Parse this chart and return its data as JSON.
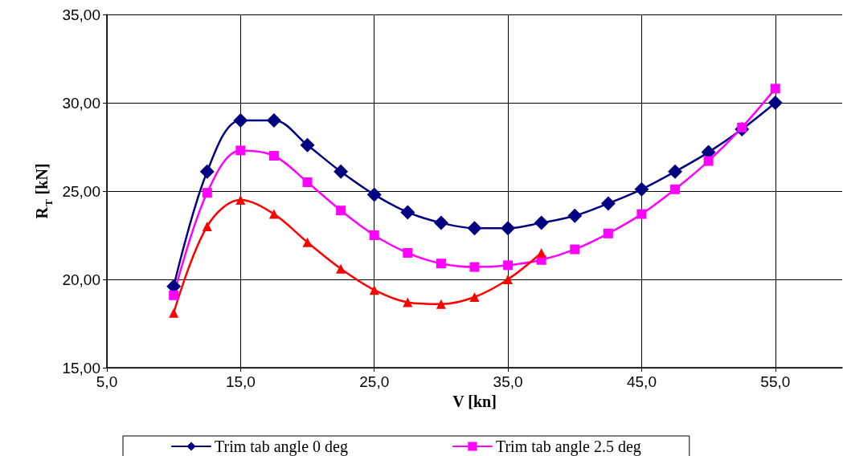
{
  "chart_data": {
    "type": "line",
    "xlabel": "V [kn]",
    "ylabel": "R$_{T}$ [kN]",
    "xlim": [
      5,
      60
    ],
    "xticks": [
      {
        "value": 5,
        "label": "5,0"
      },
      {
        "value": 15,
        "label": "15,0"
      },
      {
        "value": 25,
        "label": "25,0"
      },
      {
        "value": 35,
        "label": "35,0"
      },
      {
        "value": 45,
        "label": "45,0"
      },
      {
        "value": 55,
        "label": "55,0"
      }
    ],
    "ylim": [
      15,
      35
    ],
    "yticks": [
      {
        "value": 15,
        "label": "15,00"
      },
      {
        "value": 20,
        "label": "20,00"
      },
      {
        "value": 25,
        "label": "25,00"
      },
      {
        "value": 30,
        "label": "30,00"
      },
      {
        "value": 35,
        "label": "35,00"
      }
    ],
    "grid": true,
    "legend": "bottom",
    "series": [
      {
        "name": "Trim tab angle 0 deg",
        "color": "#000080",
        "marker": "diamond",
        "x": [
          10,
          12.5,
          15,
          17.5,
          20,
          22.5,
          25,
          27.5,
          30,
          32.5,
          35,
          37.5,
          40,
          42.5,
          45,
          47.5,
          50,
          52.5,
          55
        ],
        "values": [
          19.6,
          26.1,
          29.0,
          29.0,
          27.6,
          26.1,
          24.8,
          23.8,
          23.2,
          22.9,
          22.9,
          23.2,
          23.6,
          24.3,
          25.1,
          26.1,
          27.2,
          28.5,
          30.0
        ]
      },
      {
        "name": "Trim tab angle 2.5 deg",
        "color": "#ff00ff",
        "marker": "square",
        "x": [
          10,
          12.5,
          15,
          17.5,
          20,
          22.5,
          25,
          27.5,
          30,
          32.5,
          35,
          37.5,
          40,
          42.5,
          45,
          47.5,
          50,
          52.5,
          55
        ],
        "values": [
          19.1,
          24.9,
          27.3,
          27.0,
          25.5,
          23.9,
          22.5,
          21.5,
          20.9,
          20.7,
          20.8,
          21.1,
          21.7,
          22.6,
          23.7,
          25.1,
          26.7,
          28.6,
          30.8
        ]
      },
      {
        "color": "#ff0000",
        "marker": "triangle",
        "x": [
          10,
          12.5,
          15,
          17.5,
          20,
          22.5,
          25,
          27.5,
          30,
          32.5,
          35,
          37.5
        ],
        "values": [
          18.1,
          23.0,
          24.5,
          23.7,
          22.1,
          20.6,
          19.4,
          18.7,
          18.6,
          19.0,
          20.0,
          21.5
        ]
      }
    ]
  }
}
